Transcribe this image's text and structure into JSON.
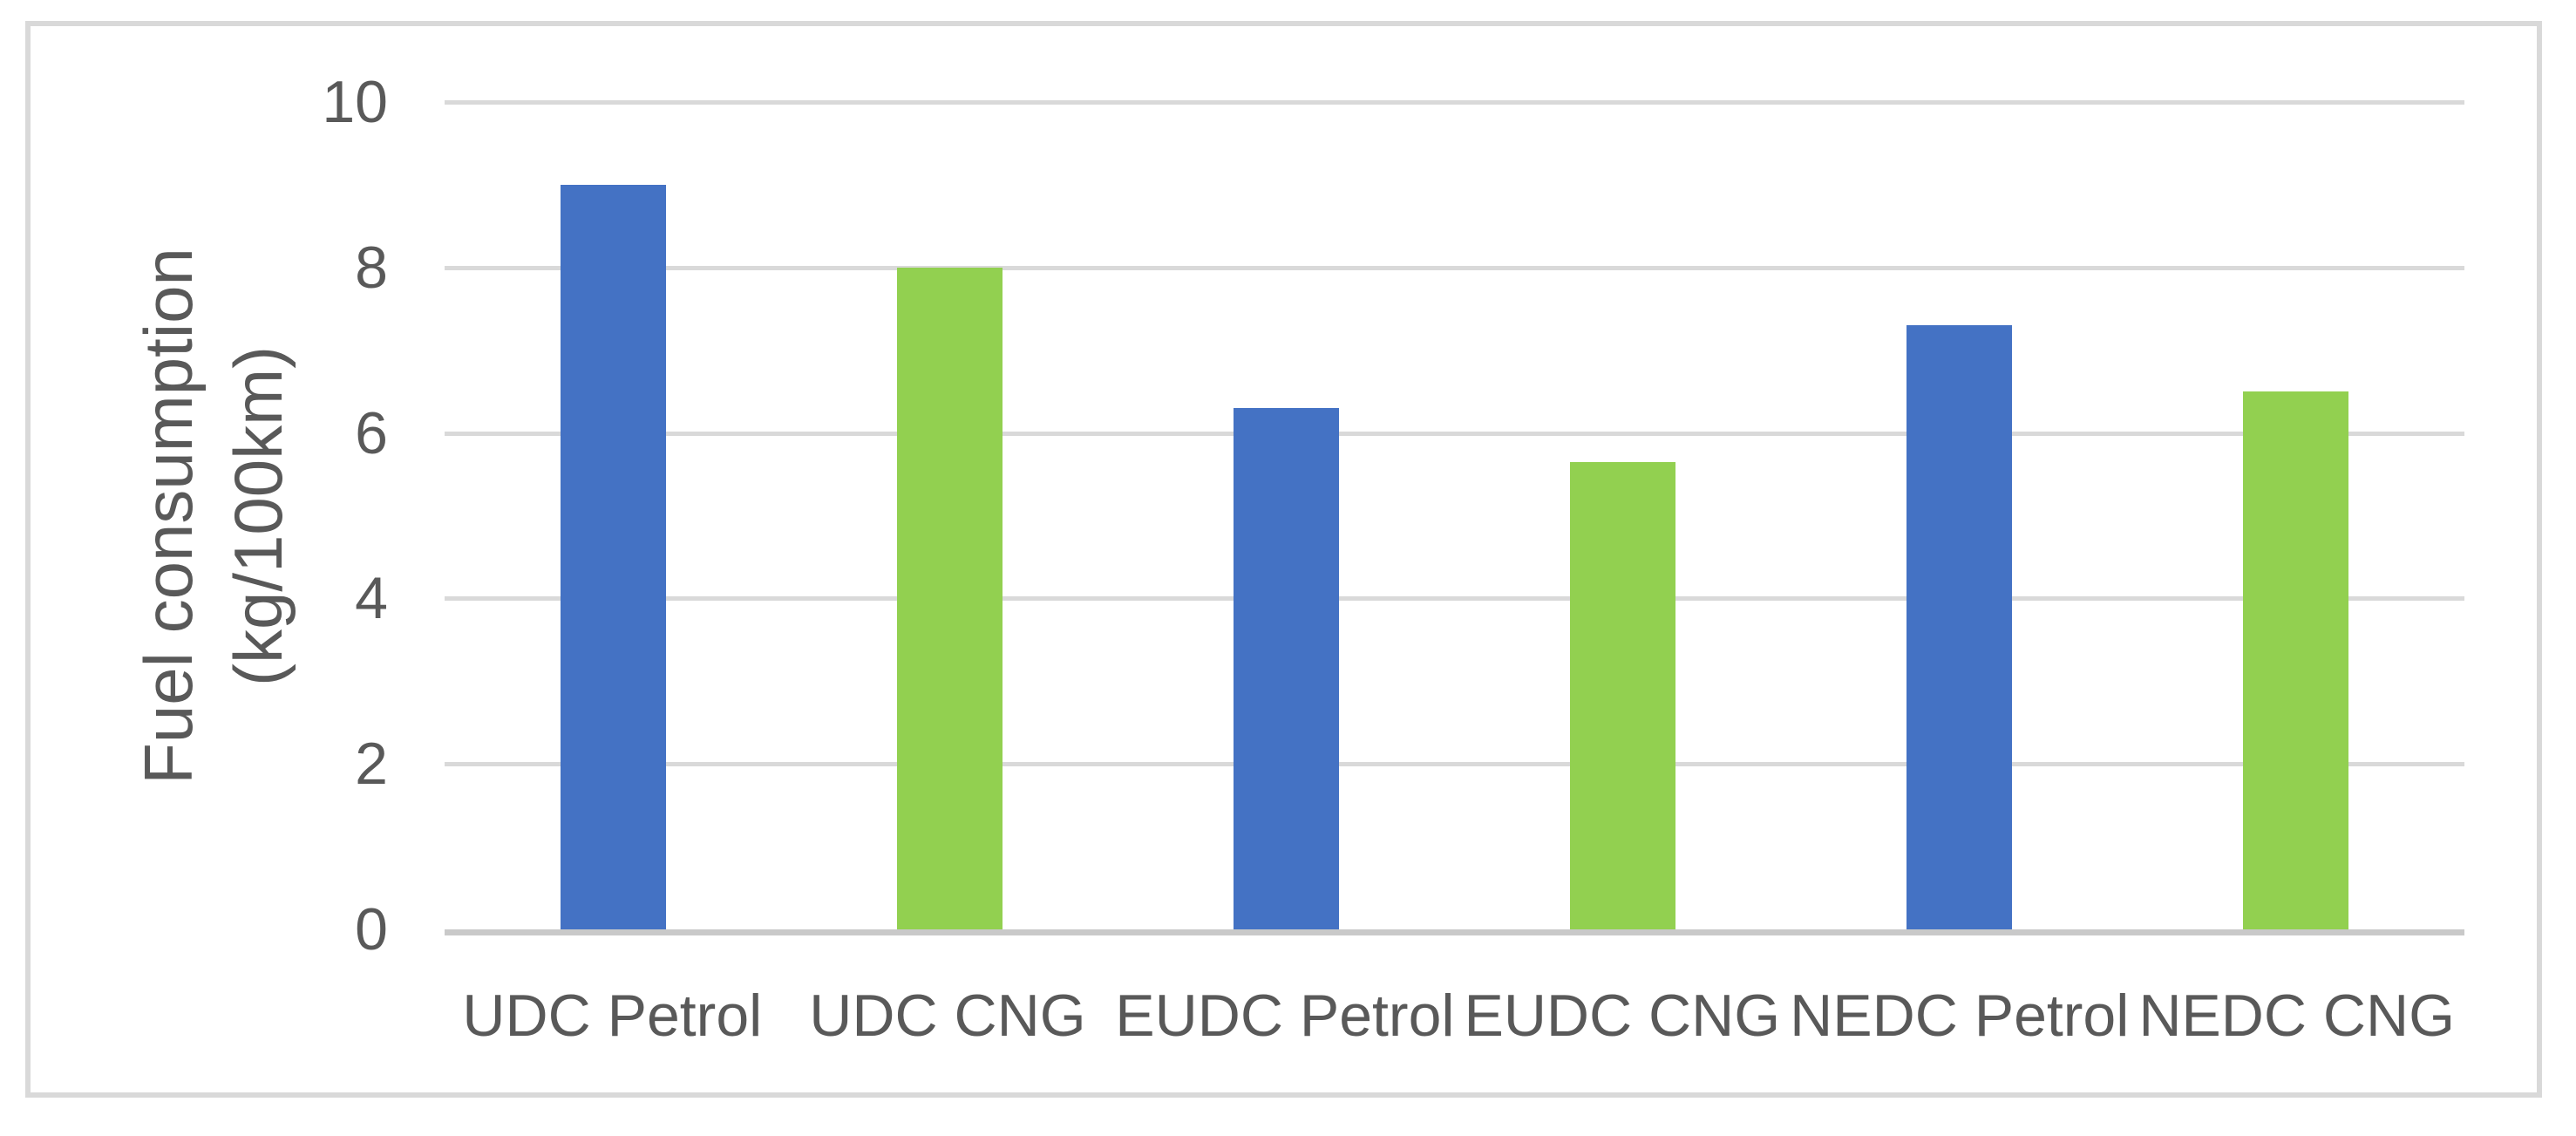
{
  "chart_data": {
    "type": "bar",
    "title": "",
    "xlabel": "",
    "ylabel": "Fuel consumption (kg/100km)",
    "ylabel_lines": [
      "Fuel consumption",
      "(kg/100km)"
    ],
    "categories": [
      "UDC Petrol",
      "UDC CNG",
      "EUDC Petrol",
      "EUDC CNG",
      "NEDC Petrol",
      "NEDC CNG"
    ],
    "values": [
      9.0,
      8.0,
      6.3,
      5.65,
      7.3,
      6.5
    ],
    "bar_colors": [
      "#4472C4",
      "#92D050",
      "#4472C4",
      "#92D050",
      "#4472C4",
      "#92D050"
    ],
    "series_semantics": {
      "petrol_color": "#4472C4",
      "cng_color": "#92D050"
    },
    "ylim": [
      0,
      10
    ],
    "yticks": [
      0,
      2,
      4,
      6,
      8,
      10
    ],
    "grid": "horizontal-on",
    "legend": "none",
    "colors": {
      "text": "#595959",
      "gridline": "#D9D9D9",
      "axis_line": "#C9C9C9",
      "frame_border": "#D9D9D9",
      "background": "#FFFFFF"
    }
  }
}
